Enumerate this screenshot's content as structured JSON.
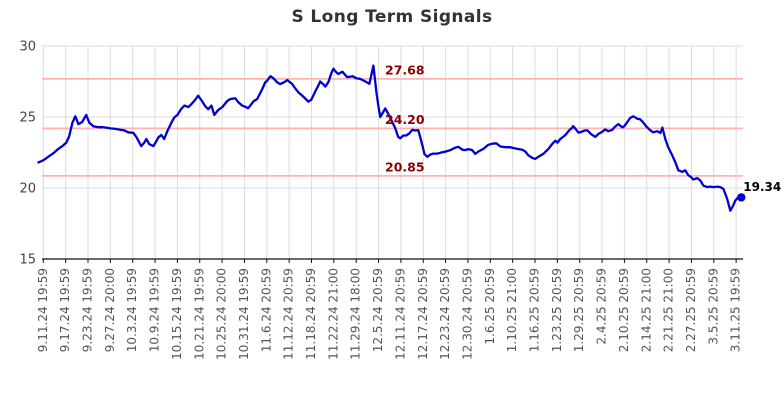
{
  "page": {
    "title": "S Long Term Signals"
  },
  "chart_data": {
    "type": "line",
    "title": "S Long Term Signals",
    "grid": true,
    "legend": "none",
    "ylim": [
      15,
      30
    ],
    "y_ticks": [
      30,
      25,
      20,
      15
    ],
    "x_tick_labels": [
      "9.11.24 19:59",
      "9.17.24 19:59",
      "9.23.24 19:59",
      "9.27.24 20:00",
      "10.3.24 19:59",
      "10.9.24 19:59",
      "10.15.24 19:59",
      "10.21.24 19:59",
      "10.25.24 20:00",
      "10.31.24 19:59",
      "11.6.24 20:59",
      "11.12.24 20:59",
      "11.18.24 20:59",
      "11.22.24 21:00",
      "11.29.24 18:00",
      "12.5.24 20:59",
      "12.11.24 20:59",
      "12.17.24 20:59",
      "12.23.24 20:59",
      "12.30.24 20:59",
      "1.6.25 20:59",
      "1.10.25 21:00",
      "1.16.25 20:59",
      "1.23.25 20:59",
      "1.29.25 20:59",
      "2.4.25 20:59",
      "2.10.25 20:59",
      "2.14.25 21:00",
      "2.21.25 21:00",
      "2.27.25 20:59",
      "3.5.25 20:59",
      "3.11.25 19:59"
    ],
    "levels": [
      {
        "label": "27.68",
        "value": 27.68
      },
      {
        "label": "24.20",
        "value": 24.2
      },
      {
        "label": "20.85",
        "value": 20.85
      }
    ],
    "last_point": {
      "label": "19.34",
      "value": 19.34
    },
    "series": [
      {
        "name": "S",
        "points": [
          [
            -0.22,
            21.8
          ],
          [
            0.0,
            21.95
          ],
          [
            0.22,
            22.2
          ],
          [
            0.45,
            22.45
          ],
          [
            0.67,
            22.75
          ],
          [
            0.89,
            23.0
          ],
          [
            1.03,
            23.2
          ],
          [
            1.16,
            23.65
          ],
          [
            1.3,
            24.6
          ],
          [
            1.43,
            25.05
          ],
          [
            1.57,
            24.5
          ],
          [
            1.74,
            24.65
          ],
          [
            1.92,
            25.15
          ],
          [
            2.06,
            24.6
          ],
          [
            2.24,
            24.35
          ],
          [
            2.46,
            24.28
          ],
          [
            2.68,
            24.28
          ],
          [
            2.86,
            24.24
          ],
          [
            3.0,
            24.2
          ],
          [
            3.22,
            24.16
          ],
          [
            3.45,
            24.1
          ],
          [
            3.62,
            24.06
          ],
          [
            3.8,
            23.92
          ],
          [
            4.03,
            23.88
          ],
          [
            4.16,
            23.6
          ],
          [
            4.3,
            23.2
          ],
          [
            4.38,
            22.95
          ],
          [
            4.52,
            23.2
          ],
          [
            4.61,
            23.45
          ],
          [
            4.74,
            23.1
          ],
          [
            4.92,
            22.95
          ],
          [
            5.06,
            23.3
          ],
          [
            5.15,
            23.57
          ],
          [
            5.28,
            23.73
          ],
          [
            5.41,
            23.45
          ],
          [
            5.55,
            24.0
          ],
          [
            5.73,
            24.6
          ],
          [
            5.86,
            24.97
          ],
          [
            6.0,
            25.14
          ],
          [
            6.17,
            25.57
          ],
          [
            6.31,
            25.8
          ],
          [
            6.49,
            25.7
          ],
          [
            6.62,
            25.9
          ],
          [
            6.76,
            26.14
          ],
          [
            6.93,
            26.5
          ],
          [
            7.11,
            26.1
          ],
          [
            7.25,
            25.75
          ],
          [
            7.38,
            25.55
          ],
          [
            7.52,
            25.8
          ],
          [
            7.65,
            25.15
          ],
          [
            7.83,
            25.5
          ],
          [
            8.01,
            25.7
          ],
          [
            8.23,
            26.13
          ],
          [
            8.37,
            26.27
          ],
          [
            8.59,
            26.32
          ],
          [
            8.72,
            26.05
          ],
          [
            8.9,
            25.8
          ],
          [
            9.04,
            25.72
          ],
          [
            9.17,
            25.62
          ],
          [
            9.4,
            26.1
          ],
          [
            9.57,
            26.27
          ],
          [
            9.8,
            26.97
          ],
          [
            9.93,
            27.44
          ],
          [
            10.02,
            27.56
          ],
          [
            10.16,
            27.87
          ],
          [
            10.29,
            27.73
          ],
          [
            10.47,
            27.44
          ],
          [
            10.6,
            27.32
          ],
          [
            10.78,
            27.45
          ],
          [
            10.92,
            27.6
          ],
          [
            11.14,
            27.32
          ],
          [
            11.28,
            27.0
          ],
          [
            11.41,
            26.74
          ],
          [
            11.59,
            26.5
          ],
          [
            11.72,
            26.3
          ],
          [
            11.86,
            26.08
          ],
          [
            11.99,
            26.22
          ],
          [
            12.17,
            26.8
          ],
          [
            12.3,
            27.2
          ],
          [
            12.39,
            27.5
          ],
          [
            12.53,
            27.3
          ],
          [
            12.62,
            27.15
          ],
          [
            12.75,
            27.45
          ],
          [
            12.89,
            28.1
          ],
          [
            12.98,
            28.4
          ],
          [
            13.11,
            28.15
          ],
          [
            13.2,
            28.03
          ],
          [
            13.38,
            28.19
          ],
          [
            13.6,
            27.8
          ],
          [
            13.83,
            27.87
          ],
          [
            14.0,
            27.73
          ],
          [
            14.18,
            27.68
          ],
          [
            14.41,
            27.5
          ],
          [
            14.59,
            27.34
          ],
          [
            14.77,
            28.62
          ],
          [
            14.9,
            26.8
          ],
          [
            14.99,
            25.8
          ],
          [
            15.08,
            25.0
          ],
          [
            15.21,
            25.35
          ],
          [
            15.3,
            25.6
          ],
          [
            15.44,
            25.2
          ],
          [
            15.53,
            24.9
          ],
          [
            15.66,
            24.5
          ],
          [
            15.75,
            24.2
          ],
          [
            15.88,
            23.6
          ],
          [
            15.97,
            23.5
          ],
          [
            16.11,
            23.7
          ],
          [
            16.24,
            23.7
          ],
          [
            16.38,
            23.85
          ],
          [
            16.51,
            24.1
          ],
          [
            16.64,
            24.05
          ],
          [
            16.78,
            24.08
          ],
          [
            16.96,
            23.0
          ],
          [
            17.05,
            22.4
          ],
          [
            17.18,
            22.2
          ],
          [
            17.32,
            22.35
          ],
          [
            17.45,
            22.42
          ],
          [
            17.63,
            22.42
          ],
          [
            17.76,
            22.48
          ],
          [
            17.99,
            22.56
          ],
          [
            18.21,
            22.67
          ],
          [
            18.43,
            22.84
          ],
          [
            18.57,
            22.9
          ],
          [
            18.75,
            22.7
          ],
          [
            18.88,
            22.67
          ],
          [
            19.02,
            22.74
          ],
          [
            19.19,
            22.67
          ],
          [
            19.33,
            22.4
          ],
          [
            19.46,
            22.56
          ],
          [
            19.69,
            22.75
          ],
          [
            19.91,
            23.04
          ],
          [
            20.09,
            23.12
          ],
          [
            20.27,
            23.15
          ],
          [
            20.45,
            22.92
          ],
          [
            20.67,
            22.87
          ],
          [
            20.89,
            22.87
          ],
          [
            20.98,
            22.84
          ],
          [
            21.21,
            22.75
          ],
          [
            21.43,
            22.7
          ],
          [
            21.57,
            22.56
          ],
          [
            21.7,
            22.3
          ],
          [
            21.88,
            22.12
          ],
          [
            22.01,
            22.05
          ],
          [
            22.15,
            22.2
          ],
          [
            22.37,
            22.4
          ],
          [
            22.6,
            22.75
          ],
          [
            22.77,
            23.1
          ],
          [
            22.91,
            23.33
          ],
          [
            23.0,
            23.2
          ],
          [
            23.13,
            23.45
          ],
          [
            23.36,
            23.73
          ],
          [
            23.53,
            24.06
          ],
          [
            23.67,
            24.25
          ],
          [
            23.71,
            24.36
          ],
          [
            23.85,
            24.1
          ],
          [
            23.94,
            23.9
          ],
          [
            24.07,
            23.95
          ],
          [
            24.21,
            24.04
          ],
          [
            24.34,
            24.06
          ],
          [
            24.52,
            23.78
          ],
          [
            24.7,
            23.6
          ],
          [
            24.83,
            23.8
          ],
          [
            24.97,
            23.92
          ],
          [
            25.14,
            24.13
          ],
          [
            25.28,
            24.0
          ],
          [
            25.46,
            24.1
          ],
          [
            25.59,
            24.33
          ],
          [
            25.73,
            24.5
          ],
          [
            25.91,
            24.27
          ],
          [
            26.0,
            24.36
          ],
          [
            26.13,
            24.64
          ],
          [
            26.26,
            24.94
          ],
          [
            26.4,
            25.05
          ],
          [
            26.58,
            24.87
          ],
          [
            26.71,
            24.83
          ],
          [
            26.85,
            24.6
          ],
          [
            26.98,
            24.33
          ],
          [
            27.16,
            24.06
          ],
          [
            27.29,
            23.92
          ],
          [
            27.47,
            24.0
          ],
          [
            27.61,
            23.87
          ],
          [
            27.7,
            24.25
          ],
          [
            27.83,
            23.45
          ],
          [
            27.96,
            22.87
          ],
          [
            28.14,
            22.3
          ],
          [
            28.28,
            21.8
          ],
          [
            28.41,
            21.25
          ],
          [
            28.59,
            21.14
          ],
          [
            28.72,
            21.25
          ],
          [
            28.86,
            20.9
          ],
          [
            28.99,
            20.76
          ],
          [
            29.08,
            20.6
          ],
          [
            29.26,
            20.7
          ],
          [
            29.4,
            20.52
          ],
          [
            29.53,
            20.17
          ],
          [
            29.71,
            20.06
          ],
          [
            29.84,
            20.1
          ],
          [
            29.98,
            20.06
          ],
          [
            30.16,
            20.1
          ],
          [
            30.29,
            20.06
          ],
          [
            30.43,
            19.94
          ],
          [
            30.6,
            19.23
          ],
          [
            30.74,
            18.4
          ],
          [
            30.87,
            18.77
          ],
          [
            30.96,
            19.12
          ],
          [
            31.1,
            19.36
          ],
          [
            31.23,
            19.34
          ]
        ]
      }
    ],
    "colors": {
      "line": "#0000d2",
      "marker": "#0000d2",
      "level_line": "#ffb3b3",
      "level_label": "#8b0000",
      "grid": "#dcdcdc",
      "axis": "#111111",
      "x_tick_label": "#555555",
      "y_tick_label": "#444444",
      "title": "#333333",
      "last_label": "#000000",
      "background": "#ffffff"
    }
  }
}
